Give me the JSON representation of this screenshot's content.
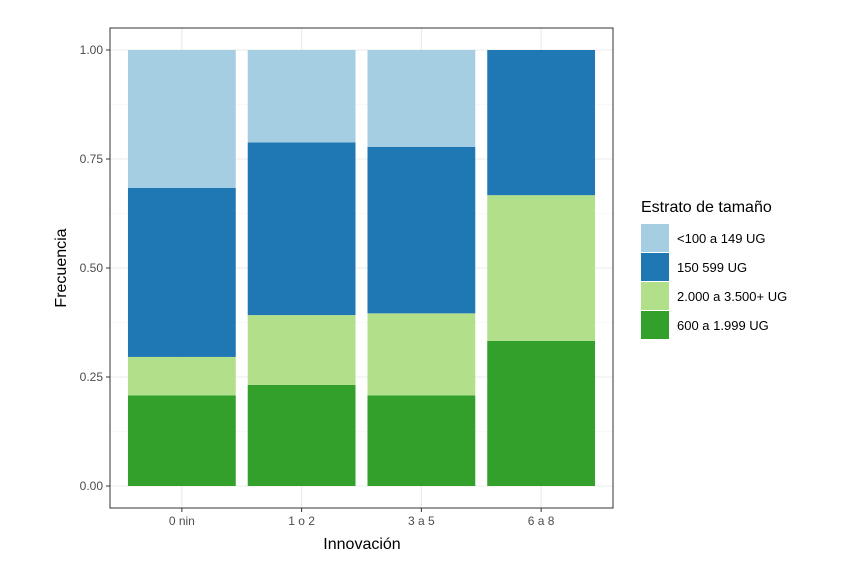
{
  "chart_data": {
    "type": "bar",
    "stacked": true,
    "title": "",
    "xlabel": "Innovación",
    "ylabel": "Frecuencia",
    "ylim": [
      0,
      1
    ],
    "yticks": [
      "0.00",
      "0.25",
      "0.50",
      "0.75",
      "1.00"
    ],
    "grid": true,
    "categories": [
      "0 nin",
      "1 o 2",
      "3 a 5",
      "6 a 8"
    ],
    "series": [
      {
        "name": "600 a 1.999 UG",
        "color": "#33a02c",
        "values": [
          0.208,
          0.232,
          0.208,
          0.333
        ]
      },
      {
        "name": "2.000 a 3.500+ UG",
        "color": "#b2df8a",
        "values": [
          0.088,
          0.16,
          0.188,
          0.334
        ]
      },
      {
        "name": "150 599 UG",
        "color": "#1f78b4",
        "values": [
          0.388,
          0.396,
          0.382,
          0.333
        ]
      },
      {
        "name": "<100 a 149 UG",
        "color": "#a6cee3",
        "values": [
          0.316,
          0.212,
          0.222,
          0.0
        ]
      }
    ],
    "legend": {
      "title": "Estrato de tamaño",
      "position": "right",
      "order": [
        "<100 a 149 UG",
        "150 599 UG",
        "2.000 a 3.500+ UG",
        "600 a 1.999 UG"
      ]
    }
  }
}
